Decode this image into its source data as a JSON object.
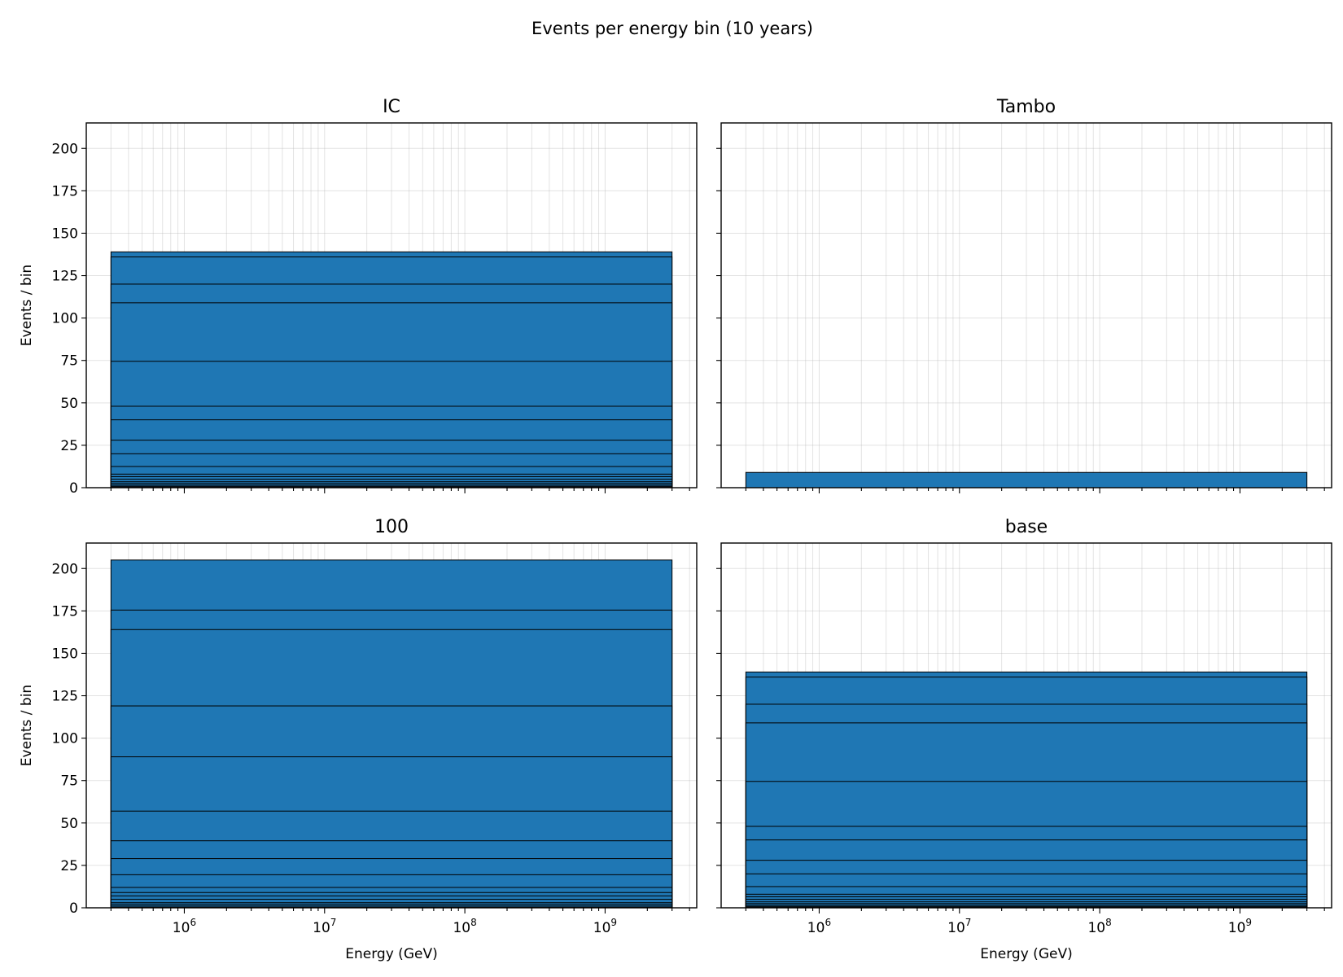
{
  "figure": {
    "suptitle": "Events per energy bin (10 years)"
  },
  "chart_data": {
    "type": "bar",
    "x_scale": "log",
    "y_scale": "linear",
    "grid": true,
    "xlabel": "Energy (GeV)",
    "ylabel": "Events / bin",
    "xlim": [
      200000,
      4500000000
    ],
    "ylim": [
      0,
      215
    ],
    "yticks": [
      0,
      25,
      50,
      75,
      100,
      125,
      150,
      175,
      200
    ],
    "xticks": [
      {
        "value": 1000000,
        "base": "10",
        "exp": "6"
      },
      {
        "value": 10000000,
        "base": "10",
        "exp": "7"
      },
      {
        "value": 100000000,
        "base": "10",
        "exp": "8"
      },
      {
        "value": 1000000000,
        "base": "10",
        "exp": "9"
      }
    ],
    "bar_x_range": [
      300000,
      3000000000
    ],
    "bar_color": "#1f77b4",
    "panels": [
      {
        "title": "IC",
        "cumulative_levels": [
          0.3,
          0.8,
          1.5,
          2.5,
          3.5,
          5,
          6.5,
          8,
          12.5,
          20,
          28,
          40,
          48,
          74.5,
          109,
          120,
          136,
          139
        ]
      },
      {
        "title": "Tambo",
        "cumulative_levels": [
          9
        ]
      },
      {
        "title": "100",
        "cumulative_levels": [
          0.3,
          1,
          2,
          3,
          5,
          7,
          9,
          12,
          19.5,
          29,
          39.5,
          57,
          89,
          119,
          164,
          175.5,
          205
        ]
      },
      {
        "title": "base",
        "cumulative_levels": [
          0.3,
          0.8,
          1.5,
          2.5,
          3.5,
          5,
          6.5,
          8,
          12.5,
          20,
          28,
          40,
          48,
          74.5,
          109,
          120,
          136,
          139
        ]
      }
    ]
  }
}
